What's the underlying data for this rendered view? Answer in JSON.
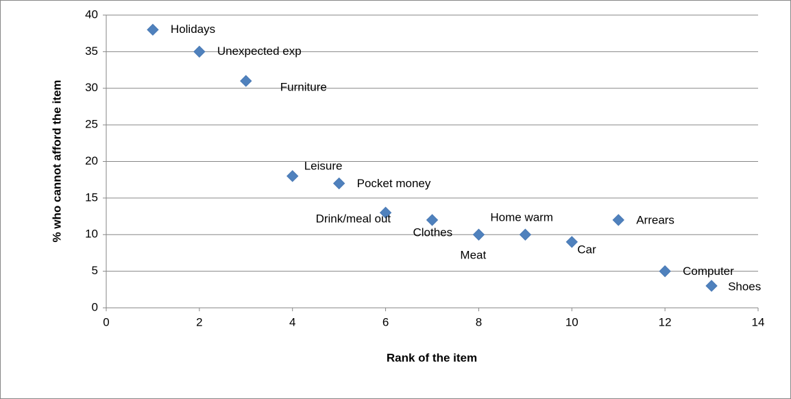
{
  "chart_data": {
    "type": "scatter",
    "x_label": "Rank of the item",
    "y_label": "% who cannot afford the item",
    "x": [
      1,
      2,
      3,
      4,
      5,
      6,
      7,
      8,
      9,
      10,
      11,
      12,
      13
    ],
    "values": [
      38,
      35,
      31,
      18,
      17,
      13,
      12,
      10,
      10,
      9,
      12,
      5,
      3
    ],
    "labels": [
      "Holidays",
      "Unexpected exp",
      "Furniture",
      "Leisure",
      "Pocket money",
      "Drink/meal out",
      "Clothes",
      "Meat",
      "Home warm",
      "Car",
      "Arrears",
      "Computer",
      "Shoes"
    ],
    "color": "#4f81bd",
    "xlim": [
      0,
      14
    ],
    "xticks": [
      0,
      2,
      4,
      6,
      8,
      10,
      12,
      14
    ],
    "ylim": [
      0,
      40
    ],
    "yticks": [
      0,
      5,
      10,
      15,
      20,
      25,
      30,
      35,
      40
    ],
    "grid": true
  }
}
